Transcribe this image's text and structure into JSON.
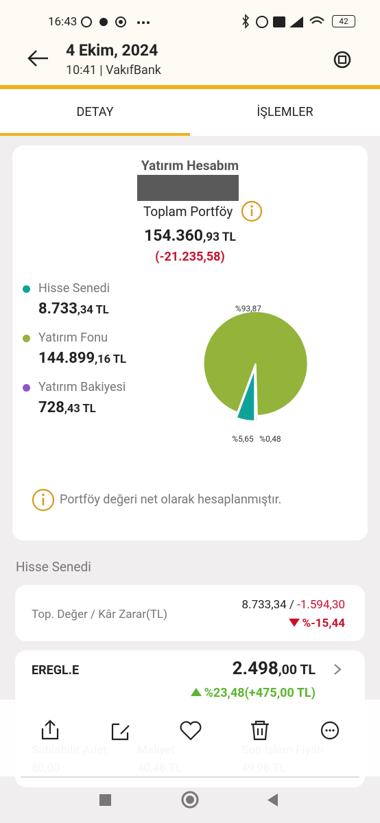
{
  "status_bar": {
    "time": "16:43",
    "battery": "42"
  },
  "header": {
    "date": "4 Ekim, 2024",
    "subtitle": "10:41 | VakıfBank"
  },
  "tabs": [
    "DETAY",
    "İŞLEMLER"
  ],
  "portfolio": {
    "title": "Yatırım Hesabım",
    "total_label": "Toplam Portföy",
    "total_main": "154.360",
    "total_fraction": ",93 TL",
    "change": "(-21.235,58)",
    "amounts": [
      {
        "main": "8.733",
        "fraction": ",34 TL"
      },
      {
        "main": "144.899",
        "fraction": ",16 TL"
      },
      {
        "main": "728",
        "fraction": ",43 TL"
      }
    ],
    "note": "Portföy değeri net olarak hesaplanmıştır."
  },
  "chart_data": {
    "type": "pie",
    "categories": [
      "Hisse Senedi",
      "Yatırım Fonu",
      "Yatırım Bakiyesi"
    ],
    "values": [
      5.65,
      93.87,
      0.48
    ],
    "value_labels": [
      "%5,65",
      "%93,87",
      "%0,48"
    ],
    "colors": [
      "#10a19b",
      "#93b33b",
      "#8e55c9"
    ]
  },
  "stocks": {
    "section_title": "Hisse Senedi",
    "summary_label": "Top. Değer / Kâr Zarar(TL)",
    "summary_value": "8.733,34 / ",
    "summary_change": "-1.594,30",
    "summary_percent": "%-15,44",
    "items": [
      {
        "symbol": "EREGL.E",
        "value_main": "2.498",
        "value_fraction": ",00 TL",
        "change": "%23,48(+475,00 TL)",
        "details": [
          {
            "label": "Satılabilir Adet",
            "value": "80,00"
          },
          {
            "label": "Maliyet",
            "value": "40,46 TL"
          },
          {
            "label": "Son İşlem Fiyatı",
            "value": "49,96 TL"
          }
        ]
      }
    ]
  }
}
